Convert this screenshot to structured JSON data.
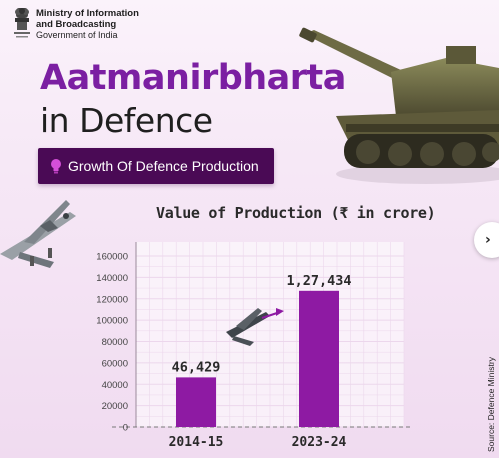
{
  "header": {
    "ministry_line1": "Ministry of Information",
    "ministry_line2": "and Broadcasting",
    "ministry_line3": "Government of India"
  },
  "title": {
    "line1": "Aatmanirbharta",
    "line2": "in Defence"
  },
  "banner": {
    "text": "Growth Of Defence Production",
    "icon": "lightbulb-icon"
  },
  "next_icon": "chevron-right-icon",
  "source": "Source: Defence Ministry",
  "colors": {
    "title_purple": "#7b1fa2",
    "banner_bg": "#4a0a55",
    "bar": "#8e1aa3",
    "grid": "#ecd7ec"
  },
  "chart_data": {
    "type": "bar",
    "title": "Value of Production (₹ in crore)",
    "categories": [
      "2014-15",
      "2023-24"
    ],
    "values": [
      46429,
      127434
    ],
    "value_labels": [
      "46,429",
      "1,27,434"
    ],
    "ylim": [
      0,
      160000
    ],
    "yticks": [
      0,
      20000,
      40000,
      60000,
      80000,
      100000,
      120000,
      140000,
      160000
    ],
    "ytick_labels": [
      "0",
      "20000",
      "40000",
      "60000",
      "80000",
      "100000",
      "120000",
      "140000",
      "160000"
    ],
    "grid": true
  }
}
